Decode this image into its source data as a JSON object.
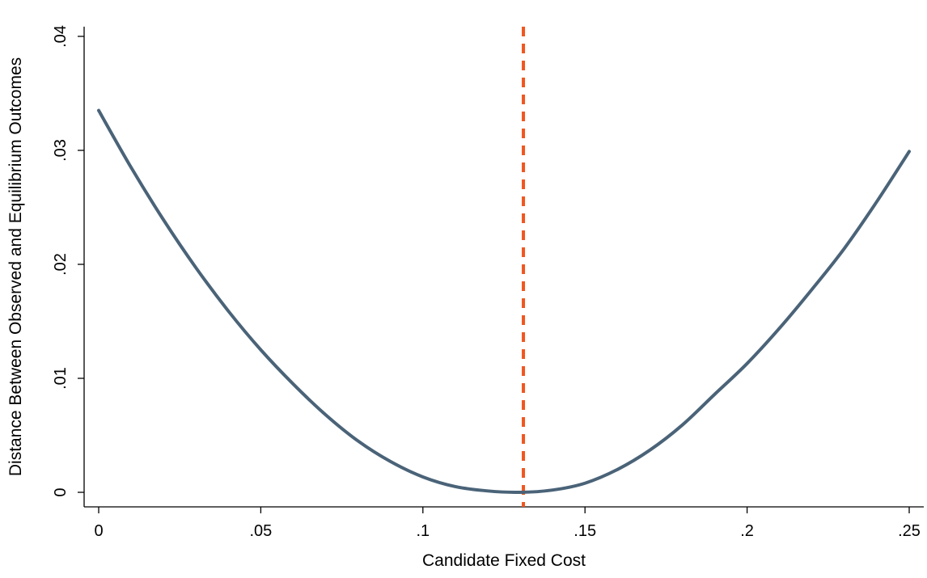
{
  "chart_data": {
    "type": "line",
    "title": "",
    "xlabel": "Candidate Fixed Cost",
    "ylabel": "Distance Between Observed and Equilibrium Outcomes",
    "xlim": [
      0,
      0.25
    ],
    "ylim": [
      0,
      0.04
    ],
    "x_ticks": [
      {
        "value": 0,
        "label": "0"
      },
      {
        "value": 0.05,
        "label": ".05"
      },
      {
        "value": 0.1,
        "label": ".1"
      },
      {
        "value": 0.15,
        "label": ".15"
      },
      {
        "value": 0.2,
        "label": ".2"
      },
      {
        "value": 0.25,
        "label": ".25"
      }
    ],
    "y_ticks": [
      {
        "value": 0,
        "label": "0"
      },
      {
        "value": 0.01,
        "label": ".01"
      },
      {
        "value": 0.02,
        "label": ".02"
      },
      {
        "value": 0.03,
        "label": ".03"
      },
      {
        "value": 0.04,
        "label": ".04"
      }
    ],
    "grid": false,
    "legend": "none",
    "series": [
      {
        "color": "#4a6378",
        "x": [
          0,
          0.01,
          0.02,
          0.03,
          0.04,
          0.05,
          0.06,
          0.07,
          0.08,
          0.09,
          0.1,
          0.11,
          0.12,
          0.13,
          0.14,
          0.15,
          0.16,
          0.17,
          0.18,
          0.19,
          0.2,
          0.21,
          0.22,
          0.23,
          0.24,
          0.25
        ],
        "y": [
          0.0335,
          0.0285,
          0.0239,
          0.0197,
          0.0159,
          0.0125,
          0.0095,
          0.0068,
          0.0045,
          0.0027,
          0.00135,
          0.0005,
          0.00012,
          0.0,
          0.0002,
          0.0008,
          0.002,
          0.0037,
          0.0059,
          0.0086,
          0.0113,
          0.0144,
          0.0178,
          0.0214,
          0.0255,
          0.0299
        ]
      }
    ],
    "vline": {
      "x": 0.131,
      "color": "#f0561f",
      "style": "dashed"
    }
  }
}
